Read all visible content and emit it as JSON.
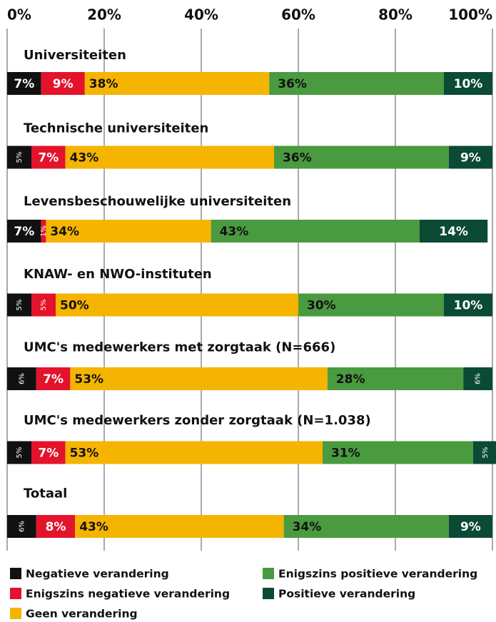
{
  "chart_data": {
    "type": "stacked-barh",
    "categories": [
      "Universiteiten",
      "Technische universiteiten",
      "Levensbeschouwelijke universiteiten",
      "KNAW- en NWO-instituten",
      "UMC's medewerkers met zorgtaak (N=666)",
      "UMC's medewerkers zonder zorgtaak (N=1.038)",
      "Totaal"
    ],
    "series": [
      {
        "name": "Negatieve verandering",
        "color": "#111111",
        "values": [
          7,
          5,
          7,
          5,
          6,
          5,
          6
        ],
        "value_labels": [
          "7%",
          "5%",
          "7%",
          "5%",
          "6%",
          "5%",
          "6%"
        ]
      },
      {
        "name": "Enigszins negatieve verandering",
        "color": "#e3132b",
        "values": [
          9,
          7,
          1,
          5,
          7,
          7,
          8
        ],
        "value_labels": [
          "9%",
          "7%",
          "1%",
          "5%",
          "7%",
          "7%",
          "8%"
        ]
      },
      {
        "name": "Geen verandering",
        "color": "#f5b400",
        "values": [
          38,
          43,
          34,
          50,
          53,
          53,
          43
        ],
        "value_labels": [
          "38%",
          "43%",
          "34%",
          "50%",
          "53%",
          "53%",
          "43%"
        ]
      },
      {
        "name": "Enigszins positieve verandering",
        "color": "#4a9a3f",
        "values": [
          36,
          36,
          43,
          30,
          28,
          31,
          34
        ],
        "value_labels": [
          "36%",
          "36%",
          "43%",
          "30%",
          "28%",
          "31%",
          "34%"
        ]
      },
      {
        "name": "Positieve verandering",
        "color": "#0b4a35",
        "values": [
          10,
          9,
          14,
          10,
          6,
          5,
          9
        ],
        "value_labels": [
          "10%",
          "9%",
          "14%",
          "10%",
          "6%",
          "5%",
          "9%"
        ]
      }
    ],
    "xlim": [
      0,
      100
    ],
    "xticks": [
      {
        "value": 0,
        "label": "0%"
      },
      {
        "value": 20,
        "label": "20%"
      },
      {
        "value": 40,
        "label": "40%"
      },
      {
        "value": 60,
        "label": "60%"
      },
      {
        "value": 80,
        "label": "80%"
      },
      {
        "value": 100,
        "label": "100%"
      }
    ],
    "grid": true
  }
}
